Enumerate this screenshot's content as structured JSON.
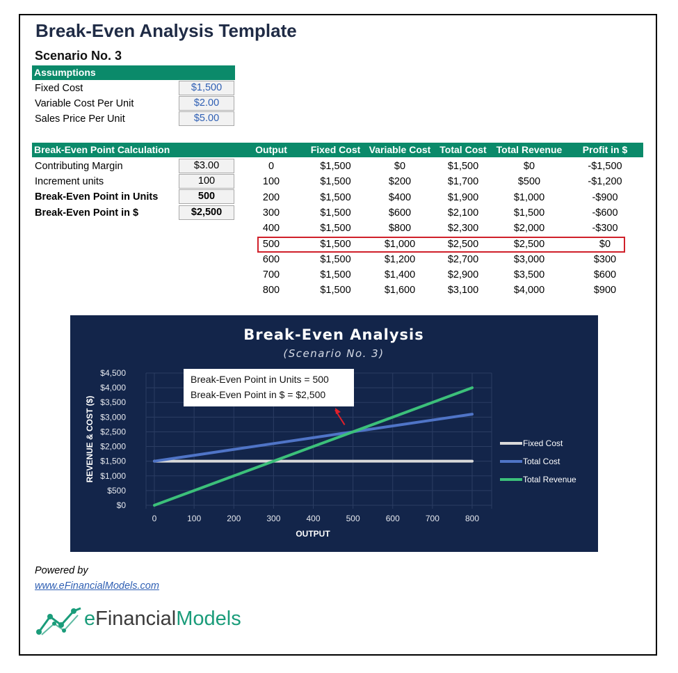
{
  "title": "Break-Even Analysis Template",
  "subtitle": "Scenario No. 3",
  "assumptions": {
    "header": "Assumptions",
    "rows": [
      {
        "label": "Fixed Cost",
        "value": "$1,500"
      },
      {
        "label": "Variable Cost Per Unit",
        "value": "$2.00"
      },
      {
        "label": "Sales Price Per Unit",
        "value": "$5.00"
      }
    ]
  },
  "calculation": {
    "header": "Break-Even Point Calculation",
    "rows": [
      {
        "label": "Contributing Margin",
        "value": "$3.00"
      },
      {
        "label": "Increment units",
        "value": "100"
      },
      {
        "label": "Break-Even Point in Units",
        "value": "500"
      },
      {
        "label": "Break-Even Point in $",
        "value": "$2,500"
      }
    ]
  },
  "table": {
    "headers": [
      "Output",
      "Fixed Cost",
      "Variable Cost",
      "Total Cost",
      "Total Revenue",
      "Profit in $"
    ],
    "rows": [
      [
        "0",
        "$1,500",
        "$0",
        "$1,500",
        "$0",
        "-$1,500"
      ],
      [
        "100",
        "$1,500",
        "$200",
        "$1,700",
        "$500",
        "-$1,200"
      ],
      [
        "200",
        "$1,500",
        "$400",
        "$1,900",
        "$1,000",
        "-$900"
      ],
      [
        "300",
        "$1,500",
        "$600",
        "$2,100",
        "$1,500",
        "-$600"
      ],
      [
        "400",
        "$1,500",
        "$800",
        "$2,300",
        "$2,000",
        "-$300"
      ],
      [
        "500",
        "$1,500",
        "$1,000",
        "$2,500",
        "$2,500",
        "$0"
      ],
      [
        "600",
        "$1,500",
        "$1,200",
        "$2,700",
        "$3,000",
        "$300"
      ],
      [
        "700",
        "$1,500",
        "$1,400",
        "$2,900",
        "$3,500",
        "$600"
      ],
      [
        "800",
        "$1,500",
        "$1,600",
        "$3,100",
        "$4,000",
        "$900"
      ]
    ],
    "highlight_row": 5
  },
  "chart_data": {
    "type": "line",
    "title": "Break-Even Analysis",
    "subtitle": "(Scenario No. 3)",
    "xlabel": "OUTPUT",
    "ylabel": "REVENUE & COST ($)",
    "x": [
      0,
      100,
      200,
      300,
      400,
      500,
      600,
      700,
      800
    ],
    "xlim": [
      0,
      800
    ],
    "ylim": [
      0,
      4500
    ],
    "yticks": [
      "$0",
      "$500",
      "$1,000",
      "$1,500",
      "$2,000",
      "$2,500",
      "$3,000",
      "$3,500",
      "$4,000",
      "$4,500"
    ],
    "xticks": [
      "0",
      "100",
      "200",
      "300",
      "400",
      "500",
      "600",
      "700",
      "800"
    ],
    "grid": true,
    "legend_position": "right",
    "series": [
      {
        "name": "Fixed Cost",
        "color": "#d9d9d9",
        "values": [
          1500,
          1500,
          1500,
          1500,
          1500,
          1500,
          1500,
          1500,
          1500
        ]
      },
      {
        "name": "Total Cost",
        "color": "#4f74c7",
        "values": [
          1500,
          1700,
          1900,
          2100,
          2300,
          2500,
          2700,
          2900,
          3100
        ]
      },
      {
        "name": "Total Revenue",
        "color": "#3cc07a",
        "values": [
          0,
          500,
          1000,
          1500,
          2000,
          2500,
          3000,
          3500,
          4000
        ]
      }
    ],
    "annotation": {
      "lines": [
        "Break-Even Point in Units = 500",
        "Break-Even Point in $ = $2,500"
      ],
      "x": 500,
      "y": 2500
    },
    "colors": {
      "background": "#13254a",
      "grid": "#2b3d63",
      "text": "#ffffff"
    }
  },
  "footer": {
    "powered": "Powered by",
    "link": "www.eFinancialModels.com",
    "logo_e": "e",
    "logo_financial": "Financial",
    "logo_models": "Models"
  }
}
